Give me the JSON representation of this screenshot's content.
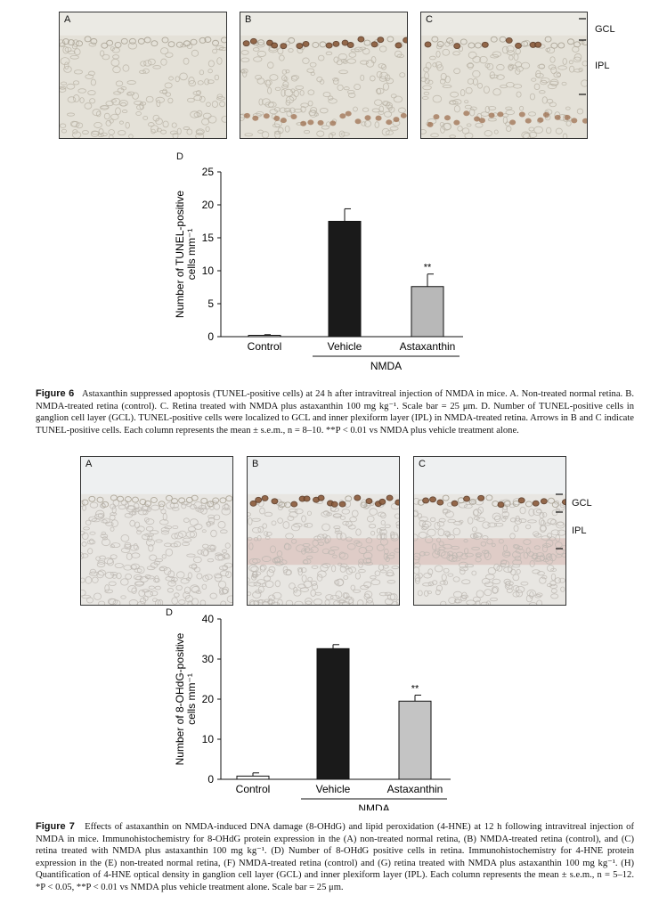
{
  "figure6": {
    "panels": [
      {
        "letter": "A",
        "tone": "normal"
      },
      {
        "letter": "B",
        "tone": "damaged"
      },
      {
        "letter": "C",
        "tone": "treated"
      }
    ],
    "layer_labels": {
      "gcl": "GCL",
      "ipl": "IPL"
    },
    "chart_label": "D",
    "caption_title": "Figure 6",
    "caption_text": "Astaxanthin suppressed apoptosis (TUNEL-positive cells) at 24 h after intravitreal injection of NMDA in mice. A. Non-treated normal retina. B. NMDA-treated retina (control). C. Retina treated with NMDA plus astaxanthin 100 mg kg⁻¹. Scale bar = 25 μm. D. Number of TUNEL-positive cells in ganglion cell layer (GCL). TUNEL-positive cells were localized to GCL and inner plexiform layer (IPL) in NMDA-treated retina. Arrows in B and C indicate TUNEL-positive cells. Each column represents the mean ± s.e.m., n = 8–10. **P < 0.01 vs NMDA plus vehicle treatment alone."
  },
  "figure7": {
    "panels": [
      {
        "letter": "A",
        "tone": "normal"
      },
      {
        "letter": "B",
        "tone": "damaged"
      },
      {
        "letter": "C",
        "tone": "treated"
      }
    ],
    "layer_labels": {
      "gcl": "GCL",
      "ipl": "IPL"
    },
    "chart_label": "D",
    "caption_title": "Figure 7",
    "caption_text": "Effects of astaxanthin on NMDA-induced DNA damage (8-OHdG) and lipid peroxidation (4-HNE) at 12 h following intravitreal injection of NMDA in mice. Immunohistochemistry for 8-OHdG protein expression in the (A) non-treated normal retina, (B) NMDA-treated retina (control), and (C) retina treated with NMDA plus astaxanthin 100 mg kg⁻¹. (D) Number of 8-OHdG positive cells in retina. Immunohistochemistry for 4-HNE protein expression in the (E) non-treated normal retina, (F) NMDA-treated retina (control) and (G) retina treated with NMDA plus astaxanthin 100 mg kg⁻¹. (H) Quantification of 4-HNE optical density in ganglion cell layer (GCL) and inner plexiform layer (IPL). Each column represents the mean ± s.e.m., n = 5–12. *P < 0.05, **P < 0.01 vs NMDA plus vehicle treatment alone. Scale bar = 25 μm."
  },
  "chart_data": [
    {
      "type": "bar",
      "categories": [
        "Control",
        "Vehicle",
        "Astaxanthin"
      ],
      "values": [
        0.2,
        17.5,
        7.6
      ],
      "errors": [
        0.1,
        1.9,
        1.9
      ],
      "colors": [
        "#ffffff",
        "#1a1a1a",
        "#b8b8b8"
      ],
      "significance": [
        "",
        "",
        "**"
      ],
      "group_label": "NMDA",
      "group_categories": [
        "Vehicle",
        "Astaxanthin"
      ],
      "ylabel_line1": "Number of TUNEL-positive",
      "ylabel_line2": "cells mm⁻¹",
      "ylim": [
        0,
        25
      ],
      "yticks": [
        0,
        5,
        10,
        15,
        20,
        25
      ]
    },
    {
      "type": "bar",
      "categories": [
        "Control",
        "Vehicle",
        "Astaxanthin"
      ],
      "values": [
        0.8,
        32.6,
        19.5
      ],
      "errors": [
        0.8,
        1.0,
        1.5
      ],
      "colors": [
        "#ffffff",
        "#1a1a1a",
        "#c4c4c4"
      ],
      "significance": [
        "",
        "",
        "**"
      ],
      "group_label": "NMDA",
      "group_categories": [
        "Vehicle",
        "Astaxanthin"
      ],
      "ylabel_line1": "Number of 8-OHdG-positive",
      "ylabel_line2": "cells mm⁻¹",
      "ylim": [
        0,
        40
      ],
      "yticks": [
        0,
        10,
        20,
        30,
        40
      ]
    }
  ]
}
